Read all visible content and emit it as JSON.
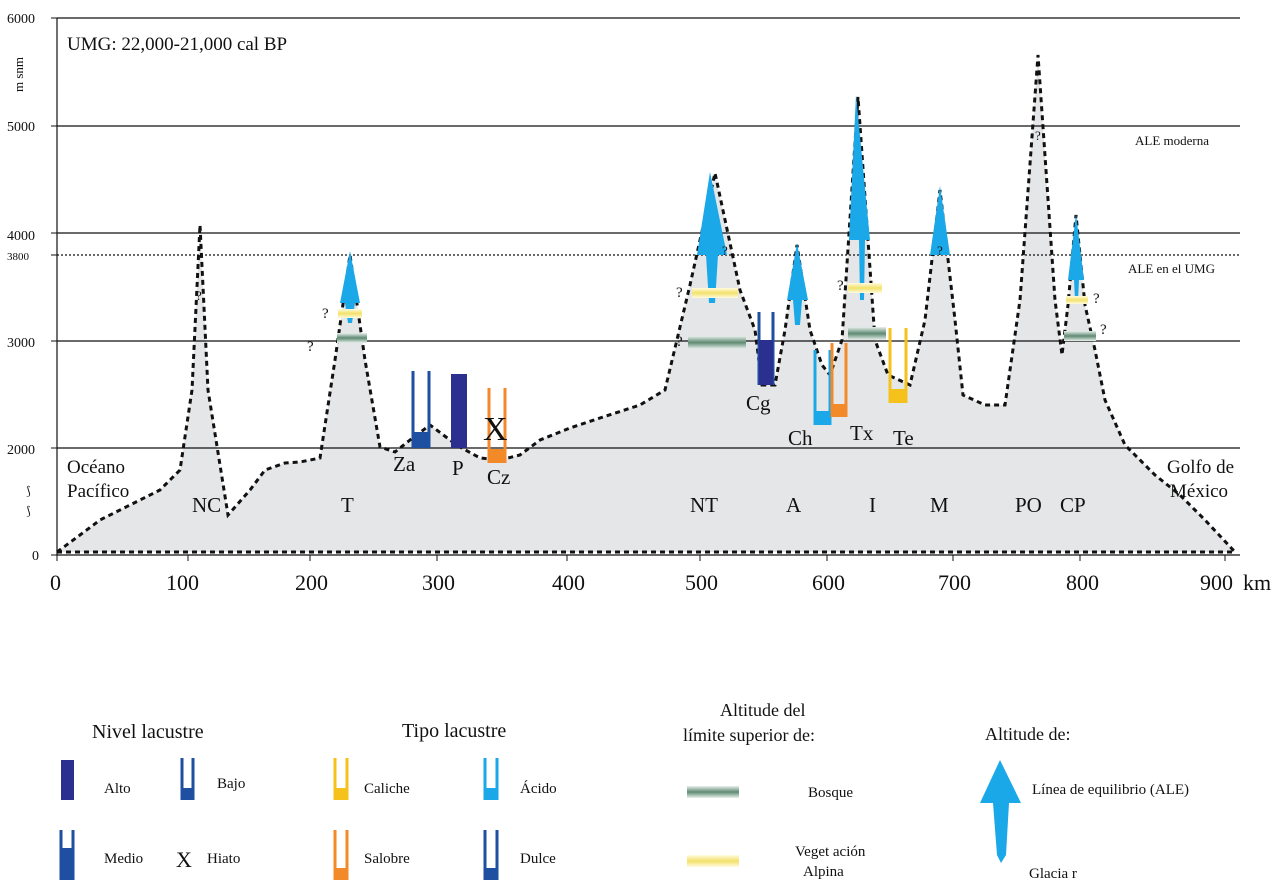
{
  "title": "UMG: 22,000-21,000   cal BP",
  "y_axis": {
    "unit": "m snm",
    "ticks": [
      "6000",
      "5000",
      "4000",
      "3800",
      "3000",
      "2000",
      "0"
    ]
  },
  "x_axis": {
    "unit": "km",
    "ticks": [
      "0",
      "100",
      "200",
      "300",
      "400",
      "500",
      "600",
      "700",
      "800",
      "900"
    ]
  },
  "reference_lines": {
    "modern": "ALE moderna",
    "lgm": "ALE en  el UMG"
  },
  "coasts": {
    "west_1": "Océano",
    "west_2": "Pacífico",
    "east_1": "Golfo de",
    "east_2": "México"
  },
  "peaks": [
    "NC",
    "T",
    "NT",
    "A",
    "I",
    "M",
    "PO",
    "CP"
  ],
  "lakes": [
    "Za",
    "P",
    "Cz",
    "Cg",
    "Ch",
    "Tx",
    "Te"
  ],
  "markers": {
    "question": "?",
    "hiatus": "X"
  },
  "legend": {
    "level": {
      "title": "Nivel lacustre",
      "high": "Alto",
      "low": "Bajo",
      "medium": "Medio",
      "hiatus_symbol": "X",
      "hiatus": "Hiato"
    },
    "type": {
      "title": "Tipo lacustre",
      "caliche": "Caliche",
      "acid": "Ácido",
      "brackish": "Salobre",
      "fresh": "Dulce"
    },
    "limits": {
      "title_1": "Altitude del",
      "title_2": "límite superior  de:",
      "forest": "Bosque",
      "alpine_1": "Veget ación",
      "alpine_2": "Alpina"
    },
    "ela": {
      "title": "Altitude de:",
      "line": "Línea  de  equilibrio  (ALE)",
      "glacier": "Glacia r"
    }
  },
  "colors": {
    "terrain": "#e5e6e8",
    "ice": "#1aa8e8",
    "lake_dark": "#2b2f8f",
    "lake_blue": "#1e4fa0",
    "caliche": "#f5c21b",
    "brackish": "#f28a2a",
    "forest": "#5f8a73",
    "alpine": "#f3e78a"
  }
}
